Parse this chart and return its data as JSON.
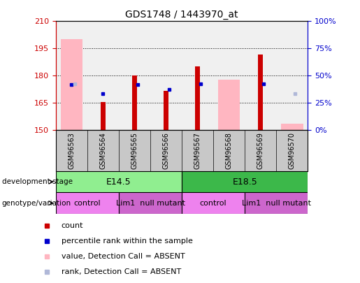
{
  "title": "GDS1748 / 1443970_at",
  "samples": [
    "GSM96563",
    "GSM96564",
    "GSM96565",
    "GSM96566",
    "GSM96567",
    "GSM96568",
    "GSM96569",
    "GSM96570"
  ],
  "ylim_left": [
    150,
    210
  ],
  "ylim_right": [
    0,
    100
  ],
  "yticks_left": [
    150,
    165,
    180,
    195,
    210
  ],
  "yticks_right": [
    0,
    25,
    50,
    75,
    100
  ],
  "absent_value_values": [
    200.0,
    null,
    null,
    null,
    null,
    178.0,
    null,
    153.5
  ],
  "count_values": [
    null,
    165.5,
    180.2,
    171.5,
    185.0,
    null,
    191.5,
    null
  ],
  "blue_rank_present": {
    "0": 175.0,
    "2": 175.0,
    "3": 172.5,
    "4": 175.5,
    "6": 175.5
  },
  "blue_rank_absent_sample": {
    "1": 170.0
  },
  "light_blue_absent": {
    "0": 175.5,
    "7": 170.0
  },
  "dev_stage_groups": [
    {
      "label": "E14.5",
      "start": 0,
      "end": 3,
      "color": "#90ee90"
    },
    {
      "label": "E18.5",
      "start": 4,
      "end": 7,
      "color": "#3cb84a"
    }
  ],
  "geno_groups": [
    {
      "label": "control",
      "start": 0,
      "end": 1,
      "color": "#ee82ee"
    },
    {
      "label": "Lim1  null mutant",
      "start": 2,
      "end": 3,
      "color": "#cc66cc"
    },
    {
      "label": "control",
      "start": 4,
      "end": 5,
      "color": "#ee82ee"
    },
    {
      "label": "Lim1  null mutant",
      "start": 6,
      "end": 7,
      "color": "#cc66cc"
    }
  ],
  "colors": {
    "count": "#cc0000",
    "rank_present": "#0000cc",
    "absent_value": "#ffb6c1",
    "absent_rank": "#b0b8d8",
    "left_axis": "#cc0000",
    "right_axis": "#0000cc",
    "bg_plot": "#f0f0f0",
    "bg_labels": "#c8c8c8"
  },
  "legend_items": [
    {
      "label": "count",
      "color": "#cc0000",
      "marker": "s"
    },
    {
      "label": "percentile rank within the sample",
      "color": "#0000cc",
      "marker": "s"
    },
    {
      "label": "value, Detection Call = ABSENT",
      "color": "#ffb6c1",
      "marker": "s"
    },
    {
      "label": "rank, Detection Call = ABSENT",
      "color": "#b0b8d8",
      "marker": "s"
    }
  ]
}
